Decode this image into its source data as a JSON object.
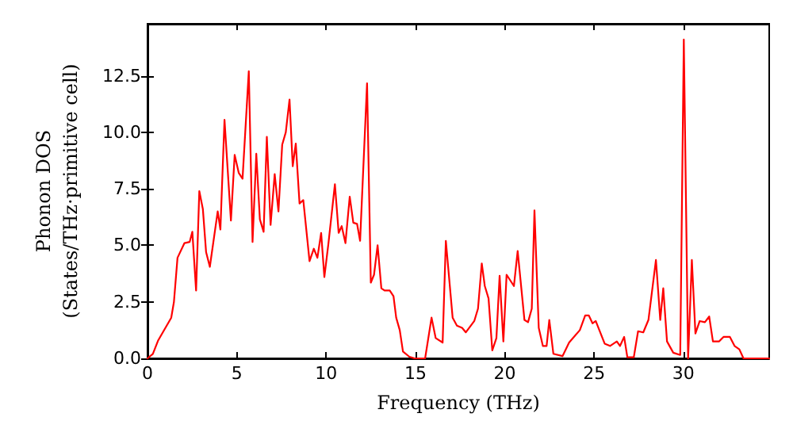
{
  "chart_data": {
    "type": "line",
    "xlabel": "Frequency (THz)",
    "ylabel": "Phonon DOS\n(States/THz·primitive cell)",
    "xlim": [
      0,
      34.8
    ],
    "xticks": [
      0,
      5,
      10,
      15,
      20,
      25,
      30
    ],
    "ylim": [
      0,
      14.8
    ],
    "yticks": [
      {
        "value": 0,
        "label": "0.0"
      },
      {
        "value": 2.5,
        "label": "2.5"
      },
      {
        "value": 5,
        "label": "5.0"
      },
      {
        "value": 7.5,
        "label": "7.5"
      },
      {
        "value": 10,
        "label": "10.0"
      },
      {
        "value": 12.5,
        "label": "12.5"
      }
    ],
    "grid": false,
    "marker": "none",
    "line_style": "solid",
    "series": [
      {
        "color": "#ff0000",
        "x": [
          0,
          0.3,
          0.6,
          1.33,
          1.48,
          1.68,
          2.07,
          2.36,
          2.51,
          2.72,
          2.9,
          3.1,
          3.28,
          3.49,
          3.93,
          4.08,
          4.31,
          4.67,
          4.88,
          5.11,
          5.32,
          5.67,
          5.88,
          6.09,
          6.29,
          6.5,
          6.68,
          6.89,
          7.12,
          7.33,
          7.54,
          7.74,
          7.95,
          8.13,
          8.3,
          8.51,
          8.72,
          9.07,
          9.31,
          9.51,
          9.72,
          9.9,
          10.13,
          10.49,
          10.7,
          10.87,
          11.08,
          11.32,
          11.52,
          11.73,
          11.9,
          12.29,
          12.5,
          12.68,
          12.88,
          13.09,
          13.27,
          13.56,
          13.77,
          13.92,
          14.12,
          14.3,
          14.66,
          14.95,
          15.54,
          15.9,
          16.13,
          16.52,
          16.7,
          17.08,
          17.32,
          17.61,
          17.82,
          18.29,
          18.5,
          18.71,
          18.88,
          19.09,
          19.3,
          19.53,
          19.71,
          19.92,
          20.1,
          20.51,
          20.72,
          21.1,
          21.3,
          21.51,
          21.66,
          21.9,
          22.13,
          22.34,
          22.49,
          22.72,
          23.23,
          23.6,
          23.82,
          24.2,
          24.5,
          24.7,
          24.91,
          25.09,
          25.59,
          25.89,
          26.27,
          26.45,
          26.68,
          26.86,
          27.22,
          27.46,
          27.75,
          28.04,
          28.46,
          28.7,
          28.87,
          29.08,
          29.43,
          29.82,
          30.02,
          30.26,
          30.47,
          30.67,
          30.91,
          31.2,
          31.44,
          31.65,
          32.0,
          32.24,
          32.6,
          32.86,
          33.13,
          33.36,
          34.8
        ],
        "values": [
          0,
          0.2,
          0.8,
          1.8,
          2.5,
          4.45,
          5.1,
          5.15,
          5.6,
          3.0,
          7.4,
          6.6,
          4.7,
          4.05,
          6.5,
          5.7,
          10.55,
          6.1,
          9.0,
          8.2,
          7.95,
          12.7,
          5.15,
          9.05,
          6.15,
          5.6,
          9.8,
          5.9,
          8.15,
          6.5,
          9.45,
          10.0,
          11.45,
          8.5,
          9.5,
          6.85,
          7.0,
          4.3,
          4.85,
          4.45,
          5.55,
          3.6,
          5.1,
          7.7,
          5.55,
          5.85,
          5.1,
          7.15,
          6.0,
          5.95,
          5.2,
          12.17,
          3.35,
          3.7,
          5.0,
          3.1,
          3.0,
          3.0,
          2.75,
          1.8,
          1.25,
          0.3,
          0.07,
          0,
          0,
          1.8,
          0.9,
          0.7,
          5.2,
          1.8,
          1.45,
          1.35,
          1.15,
          1.65,
          2.2,
          4.2,
          3.2,
          2.65,
          0.35,
          0.9,
          3.65,
          0.75,
          3.7,
          3.2,
          4.75,
          1.7,
          1.6,
          2.2,
          6.55,
          1.35,
          0.55,
          0.55,
          1.7,
          0.2,
          0.1,
          0.7,
          0.9,
          1.25,
          1.9,
          1.9,
          1.55,
          1.65,
          0.65,
          0.55,
          0.75,
          0.55,
          0.95,
          0.05,
          0.05,
          1.2,
          1.15,
          1.7,
          4.35,
          1.7,
          3.1,
          0.75,
          0.25,
          0.15,
          14.1,
          0,
          4.35,
          1.1,
          1.65,
          1.6,
          1.85,
          0.75,
          0.75,
          0.95,
          0.95,
          0.55,
          0.4,
          0,
          0
        ]
      }
    ]
  }
}
